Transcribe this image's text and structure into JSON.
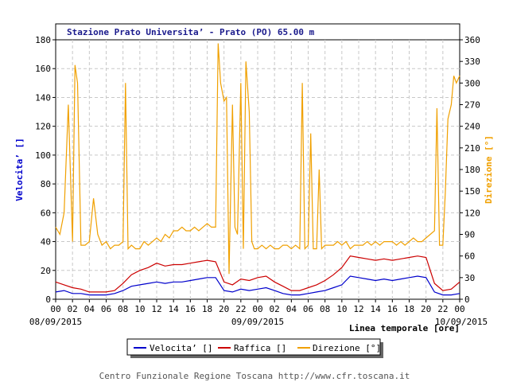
{
  "chart_data": {
    "type": "line",
    "title": "Stazione Prato Universita’ - Prato (PO) 65.00 m",
    "ylabel_left": "Velocita’ []",
    "ylabel_right": "Direzione [°]",
    "xlabel": "Linea temporale [ore]",
    "ylim_left": [
      0,
      180
    ],
    "ylim_right": [
      0,
      360
    ],
    "yticks_left": [
      "0",
      "20",
      "40",
      "60",
      "80",
      "100",
      "120",
      "140",
      "160",
      "180"
    ],
    "yticks_right": [
      "0",
      "30",
      "60",
      "90",
      "120",
      "150",
      "180",
      "210",
      "240",
      "270",
      "300",
      "330",
      "360"
    ],
    "xlim_hours": [
      0,
      48
    ],
    "xticks": [
      "00",
      "02",
      "04",
      "06",
      "08",
      "10",
      "12",
      "14",
      "16",
      "18",
      "20",
      "22",
      "00",
      "02",
      "04",
      "06",
      "08",
      "10",
      "12",
      "14",
      "16",
      "18",
      "20",
      "22"
    ],
    "date_labels": [
      "08/09/2015",
      "09/09/2015",
      "10/09/2015"
    ],
    "grid": true,
    "legend_position": "bottom",
    "series": [
      {
        "name": "Velocita’ []",
        "color": "#0000cc",
        "axis": "left",
        "x": [
          0,
          1,
          2,
          3,
          4,
          5,
          6,
          7,
          8,
          9,
          10,
          11,
          12,
          13,
          14,
          15,
          16,
          17,
          18,
          19,
          20,
          21,
          22,
          23,
          24,
          25,
          26,
          27,
          28,
          29,
          30,
          31,
          32,
          33,
          34,
          35,
          36,
          37,
          38,
          39,
          40,
          41,
          42,
          43,
          44,
          45,
          46,
          47,
          48
        ],
        "y": [
          5,
          6,
          4,
          4,
          3,
          3,
          3,
          4,
          6,
          9,
          10,
          11,
          12,
          11,
          12,
          12,
          13,
          14,
          15,
          15,
          6,
          5,
          7,
          6,
          7,
          8,
          6,
          4,
          3,
          3,
          4,
          5,
          6,
          8,
          10,
          16,
          15,
          14,
          13,
          14,
          13,
          14,
          15,
          16,
          15,
          5,
          3,
          3,
          4
        ]
      },
      {
        "name": "Raffica []",
        "color": "#cc0000",
        "axis": "left",
        "x": [
          0,
          1,
          2,
          3,
          4,
          5,
          6,
          7,
          8,
          9,
          10,
          11,
          12,
          13,
          14,
          15,
          16,
          17,
          18,
          19,
          20,
          21,
          22,
          23,
          24,
          25,
          26,
          27,
          28,
          29,
          30,
          31,
          32,
          33,
          34,
          35,
          36,
          37,
          38,
          39,
          40,
          41,
          42,
          43,
          44,
          45,
          46,
          47,
          48
        ],
        "y": [
          12,
          10,
          8,
          7,
          5,
          5,
          5,
          6,
          11,
          17,
          20,
          22,
          25,
          23,
          24,
          24,
          25,
          26,
          27,
          26,
          12,
          10,
          14,
          13,
          15,
          16,
          12,
          9,
          6,
          6,
          8,
          10,
          13,
          17,
          22,
          30,
          29,
          28,
          27,
          28,
          27,
          28,
          29,
          30,
          29,
          11,
          6,
          7,
          12
        ]
      },
      {
        "name": "Direzione [°]",
        "color": "#f0a000",
        "axis": "right",
        "x": [
          0,
          0.5,
          1,
          1.5,
          2,
          2.3,
          2.6,
          3,
          3.5,
          4,
          4.5,
          5,
          5.5,
          6,
          6.5,
          7,
          7.5,
          8,
          8.3,
          8.6,
          9,
          9.5,
          10,
          10.5,
          11,
          11.5,
          12,
          12.5,
          13,
          13.5,
          14,
          14.5,
          15,
          15.5,
          16,
          16.5,
          17,
          17.5,
          18,
          18.5,
          19,
          19.3,
          19.6,
          20,
          20.3,
          20.6,
          21,
          21.3,
          21.6,
          22,
          22.3,
          22.6,
          23,
          23.3,
          23.6,
          24,
          24.5,
          25,
          25.5,
          26,
          26.5,
          27,
          27.5,
          28,
          28.5,
          29,
          29.3,
          29.6,
          30,
          30.3,
          30.6,
          31,
          31.3,
          31.6,
          32,
          32.5,
          33,
          33.5,
          34,
          34.5,
          35,
          35.5,
          36,
          36.5,
          37,
          37.5,
          38,
          38.5,
          39,
          39.5,
          40,
          40.5,
          41,
          41.5,
          42,
          42.5,
          43,
          43.5,
          44,
          44.5,
          45,
          45.3,
          45.6,
          46,
          46.3,
          46.6,
          47,
          47.3,
          47.6,
          48
        ],
        "y": [
          100,
          90,
          120,
          270,
          80,
          325,
          300,
          75,
          75,
          80,
          140,
          90,
          75,
          80,
          70,
          75,
          75,
          80,
          300,
          70,
          75,
          70,
          70,
          80,
          75,
          80,
          85,
          80,
          90,
          85,
          95,
          95,
          100,
          95,
          95,
          100,
          95,
          100,
          105,
          100,
          100,
          355,
          300,
          275,
          280,
          35,
          270,
          100,
          90,
          300,
          70,
          330,
          260,
          80,
          70,
          70,
          75,
          70,
          75,
          70,
          70,
          75,
          75,
          70,
          75,
          70,
          300,
          70,
          75,
          230,
          70,
          70,
          180,
          70,
          75,
          75,
          75,
          80,
          75,
          80,
          70,
          75,
          75,
          75,
          80,
          75,
          80,
          75,
          80,
          80,
          80,
          75,
          80,
          75,
          80,
          85,
          80,
          80,
          85,
          90,
          95,
          265,
          75,
          75,
          150,
          250,
          270,
          310,
          300,
          310
        ]
      }
    ]
  },
  "legend": {
    "items": [
      {
        "label": "Velocita’ []",
        "color": "#0000cc"
      },
      {
        "label": "Raffica []",
        "color": "#cc0000"
      },
      {
        "label": "Direzione [°]",
        "color": "#f0a000"
      }
    ]
  },
  "footer": "Centro Funzionale Regione Toscana http://www.cfr.toscana.it"
}
